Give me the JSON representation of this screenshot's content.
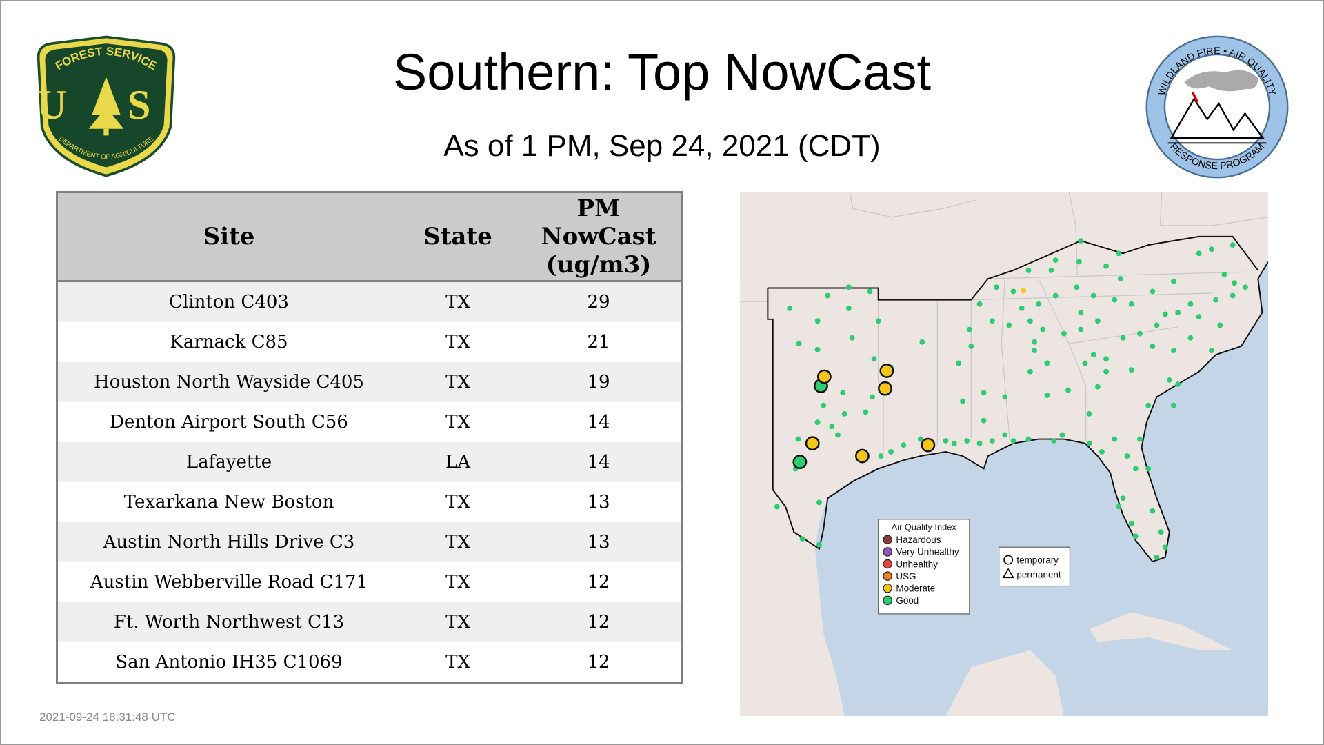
{
  "title": "Southern: Top NowCast",
  "subtitle": "As of  1 PM, Sep 24, 2021 (CDT)",
  "logos": {
    "left": {
      "top_text": "FOREST SERVICE",
      "letters": "U S",
      "bottom_text": "DEPARTMENT OF AGRICULTURE"
    },
    "right": {
      "top_text": "WILDLAND FIRE • AIR QUALITY",
      "bottom_text": "RESPONSE PROGRAM"
    }
  },
  "table": {
    "headers": {
      "site": "Site",
      "state": "State",
      "pm_line1": "PM",
      "pm_line2": "NowCast",
      "pm_line3": "(ug/m3)"
    },
    "rows": [
      {
        "site": "Clinton C403",
        "state": "TX",
        "pm": "29"
      },
      {
        "site": "Karnack C85",
        "state": "TX",
        "pm": "21"
      },
      {
        "site": "Houston North Wayside C405",
        "state": "TX",
        "pm": "19"
      },
      {
        "site": "Denton Airport South C56",
        "state": "TX",
        "pm": "14"
      },
      {
        "site": "Lafayette",
        "state": "LA",
        "pm": "14"
      },
      {
        "site": "Texarkana New Boston",
        "state": "TX",
        "pm": "13"
      },
      {
        "site": "Austin North Hills Drive C3",
        "state": "TX",
        "pm": "13"
      },
      {
        "site": "Austin Webberville Road C171",
        "state": "TX",
        "pm": "12"
      },
      {
        "site": "Ft. Worth Northwest C13",
        "state": "TX",
        "pm": "12"
      },
      {
        "site": "San Antonio IH35 C1069",
        "state": "TX",
        "pm": "12"
      }
    ]
  },
  "map": {
    "aqi_legend": {
      "title": "Air Quality Index",
      "items": [
        {
          "label": "Hazardous",
          "color": "#8b3a3a"
        },
        {
          "label": "Very Unhealthy",
          "color": "#9b4fc0"
        },
        {
          "label": "Unhealthy",
          "color": "#e8463c"
        },
        {
          "label": "USG",
          "color": "#ee8020"
        },
        {
          "label": "Moderate",
          "color": "#f5c518"
        },
        {
          "label": "Good",
          "color": "#2ecc71"
        }
      ]
    },
    "shape_legend": {
      "items": [
        {
          "label": "temporary",
          "icon": "circle"
        },
        {
          "label": "permanent",
          "icon": "triangle"
        }
      ]
    },
    "colors": {
      "land": "#ece5e1",
      "water": "#c3d5e6",
      "good": "#2ecc71",
      "moderate": "#f5c518"
    }
  },
  "timestamp": "2021-09-24 18:31:48 UTC"
}
